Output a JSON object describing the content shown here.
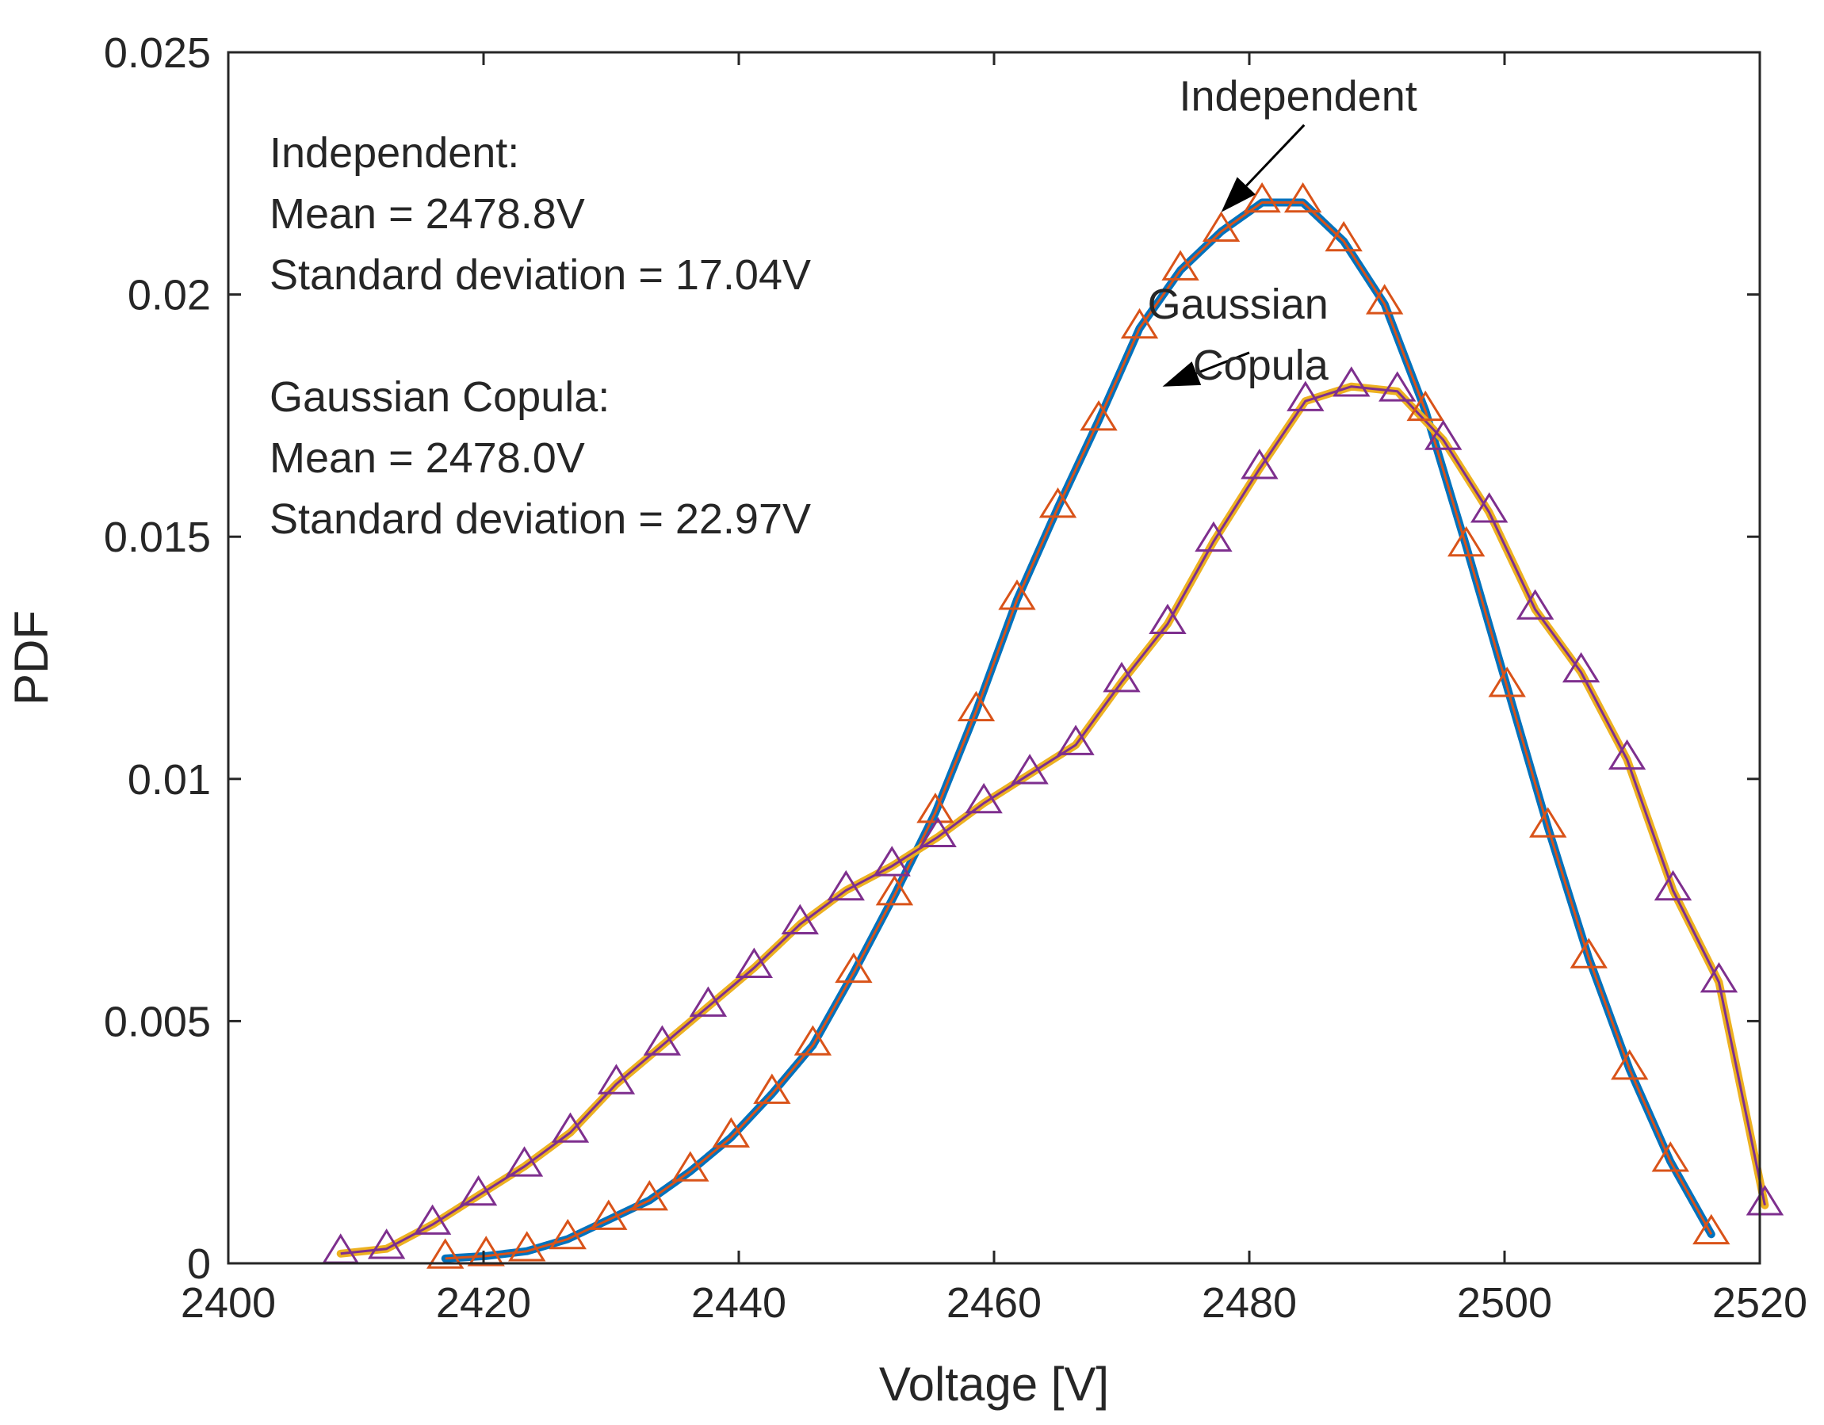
{
  "chart_data": {
    "type": "line",
    "xlabel": "Voltage [V]",
    "ylabel": "PDF",
    "xlim": [
      2400,
      2520
    ],
    "ylim": [
      0,
      0.025
    ],
    "x_ticks": [
      2400,
      2420,
      2440,
      2460,
      2480,
      2500,
      2520
    ],
    "x_tick_labels": [
      "2400",
      "2420",
      "2440",
      "2460",
      "2480",
      "2500",
      "2520"
    ],
    "y_ticks": [
      0,
      0.005,
      0.01,
      0.015,
      0.02,
      0.025
    ],
    "y_tick_labels": [
      "0",
      "0.005",
      "0.01",
      "0.015",
      "0.02",
      "0.025"
    ],
    "grid": false,
    "series": [
      {
        "name": "Independent",
        "line_color": "#0072BD",
        "line_under_color": "#D95319",
        "marker": "triangle",
        "marker_color": "#D95319",
        "x": [
          2417.0,
          2420.2,
          2423.4,
          2426.6,
          2429.8,
          2433.0,
          2436.2,
          2439.4,
          2442.6,
          2445.8,
          2449.0,
          2452.2,
          2455.4,
          2458.6,
          2461.8,
          2465.0,
          2468.2,
          2471.4,
          2474.6,
          2477.8,
          2481.0,
          2484.2,
          2487.4,
          2490.6,
          2493.8,
          2497.0,
          2500.2,
          2503.4,
          2506.6,
          2509.8,
          2513.0,
          2516.2
        ],
        "y": [
          0.0001,
          0.00015,
          0.00025,
          0.0005,
          0.0009,
          0.0013,
          0.0019,
          0.0026,
          0.0035,
          0.0045,
          0.006,
          0.0076,
          0.0093,
          0.0114,
          0.0137,
          0.0156,
          0.0174,
          0.0193,
          0.0205,
          0.0213,
          0.0219,
          0.0219,
          0.0211,
          0.0198,
          0.0176,
          0.0148,
          0.0119,
          0.009,
          0.0063,
          0.004,
          0.0021,
          0.0006
        ]
      },
      {
        "name": "Gaussian Copula",
        "line_color": "#EDB120",
        "line_under_color": "#7E2F8E",
        "marker": "triangle",
        "marker_color": "#7E2F8E",
        "x": [
          2408.8,
          2412.4,
          2416.0,
          2419.6,
          2423.2,
          2426.8,
          2430.4,
          2434.0,
          2437.6,
          2441.2,
          2444.8,
          2448.4,
          2452.0,
          2455.6,
          2459.2,
          2462.8,
          2466.4,
          2470.0,
          2473.6,
          2477.2,
          2480.8,
          2484.4,
          2488.0,
          2491.6,
          2495.2,
          2498.8,
          2502.4,
          2506.0,
          2509.6,
          2513.2,
          2516.8,
          2520.4
        ],
        "y": [
          0.0002,
          0.0003,
          0.0008,
          0.0014,
          0.002,
          0.0027,
          0.0037,
          0.0045,
          0.0053,
          0.0061,
          0.007,
          0.0077,
          0.0082,
          0.0088,
          0.0095,
          0.0101,
          0.0107,
          0.012,
          0.0132,
          0.0149,
          0.0164,
          0.0178,
          0.0181,
          0.018,
          0.017,
          0.0155,
          0.0135,
          0.0122,
          0.0104,
          0.0077,
          0.0058,
          0.0012
        ]
      }
    ],
    "annotations": {
      "stats_lines": [
        "Independent:",
        "Mean = 2478.8V",
        "Standard deviation = 17.04V",
        "",
        "Gaussian Copula:",
        "Mean = 2478.0V",
        "Standard deviation = 22.97V"
      ],
      "callouts": [
        {
          "lines": [
            "Independent"
          ],
          "align": "start",
          "arrow_from": [
            2484.3,
            0.0235
          ],
          "arrow_to": [
            2477.8,
            0.0217
          ],
          "text_at": [
            2474.5,
            0.0238
          ]
        },
        {
          "lines": [
            "Gaussian",
            "Copula"
          ],
          "align": "end",
          "arrow_from": [
            2480.0,
            0.0188
          ],
          "arrow_to": [
            2473.2,
            0.0181
          ],
          "text_at": [
            2486.2,
            0.0195
          ]
        }
      ]
    }
  }
}
